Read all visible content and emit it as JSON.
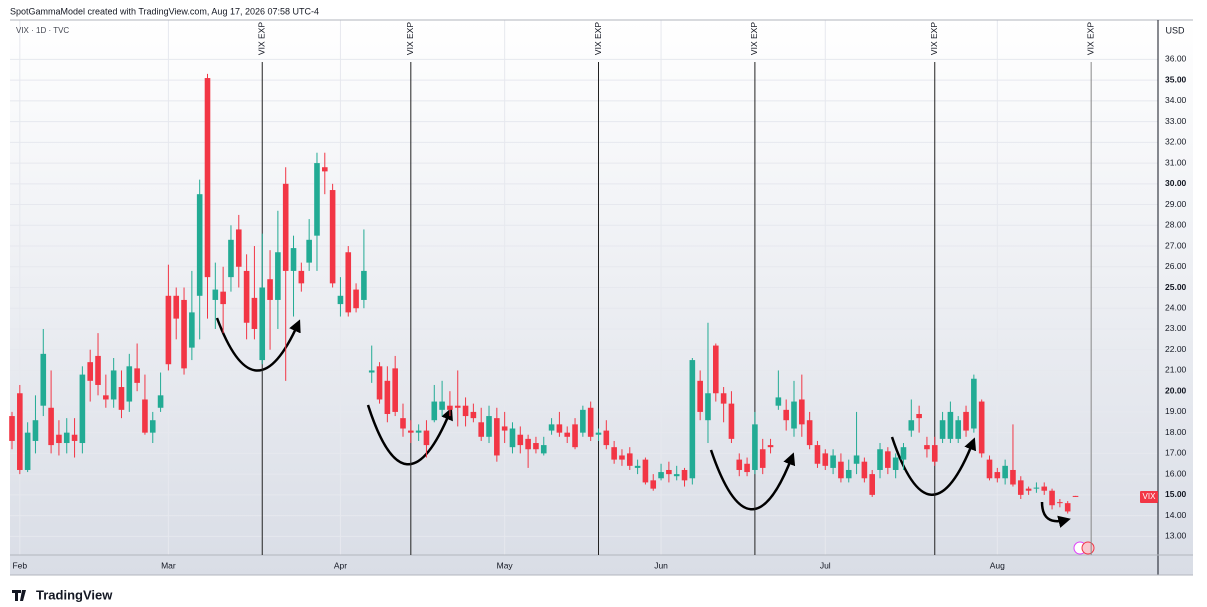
{
  "chart_data": {
    "type": "candlestick",
    "header": "SpotGammaModel created with TradingView.com, Aug 17, 2026 07:58 UTC-4",
    "symbol": "VIX · 1D · TVC",
    "currency": "USD",
    "price_label": "VIX",
    "brand": "TradingView",
    "up_color": "#22ab94",
    "down_color": "#f23645",
    "grid": true,
    "categories": [
      null,
      "Feb",
      null,
      null,
      null,
      null,
      null,
      null,
      null,
      null,
      null,
      null,
      null,
      null,
      null,
      null,
      null,
      null,
      null,
      null,
      "Mar",
      null,
      null,
      null,
      null,
      null,
      null,
      null,
      null,
      null,
      null,
      null,
      null,
      null,
      null,
      null,
      null,
      null,
      null,
      null,
      null,
      null,
      "Apr",
      null,
      null,
      null,
      null,
      null,
      null,
      null,
      null,
      null,
      null,
      null,
      null,
      null,
      null,
      null,
      null,
      null,
      null,
      null,
      null,
      "May",
      null,
      null,
      null,
      null,
      null,
      null,
      null,
      null,
      null,
      null,
      null,
      null,
      null,
      null,
      null,
      null,
      null,
      null,
      null,
      "Jun",
      null,
      null,
      null,
      null,
      null,
      null,
      null,
      null,
      null,
      null,
      null,
      null,
      null,
      null,
      null,
      null,
      null,
      null,
      null,
      null,
      "Jul",
      null,
      null,
      null,
      null,
      null,
      null,
      null,
      null,
      null,
      null,
      null,
      null,
      null,
      null,
      null,
      null,
      null,
      null,
      null,
      null,
      null,
      "Aug",
      null,
      null,
      null,
      null,
      null,
      null,
      null,
      null,
      null,
      null
    ],
    "open": [
      18.8,
      19.9,
      16.2,
      17.6,
      19.3,
      19.2,
      17.9,
      17.5,
      17.9,
      17.5,
      21.4,
      21.7,
      19.8,
      19.6,
      20.2,
      19.5,
      21.1,
      19.6,
      18.0,
      19.2,
      24.6,
      24.6,
      24.4,
      22.1,
      24.6,
      35.1,
      24.4,
      24.8,
      25.5,
      27.8,
      25.8,
      24.5,
      21.5,
      25.4,
      24.4,
      30.0,
      25.8,
      25.8,
      26.2,
      27.5,
      30.8,
      29.7,
      24.2,
      26.7,
      24.9,
      24.4,
      20.9,
      21.2,
      20.5,
      21.1,
      18.7,
      18.1,
      18.0,
      18.1,
      18.6,
      19.1,
      19.3,
      19.3,
      19.3,
      19.0,
      18.5,
      17.8,
      18.7,
      18.3,
      17.3,
      17.9,
      17.7,
      17.5,
      17.0,
      18.1,
      18.4,
      18.0,
      18.4,
      18.0,
      19.2,
      17.9,
      18.1,
      17.3,
      16.9,
      17.0,
      16.3,
      16.7,
      15.7,
      15.8,
      16.2,
      15.9,
      16.2,
      15.8,
      20.5,
      18.6,
      22.2,
      19.9,
      19.4,
      16.7,
      16.5,
      16.2,
      17.2,
      17.4,
      19.3,
      19.1,
      18.2,
      19.6,
      18.6,
      17.4,
      17.0,
      16.3,
      16.6,
      15.8,
      16.5,
      16.6,
      16.0,
      16.2,
      17.1,
      16.2,
      16.7,
      18.1,
      18.9,
      17.4,
      17.4,
      17.7,
      17.7,
      17.7,
      19.0,
      18.2,
      19.5,
      16.7,
      16.1,
      15.8,
      16.2,
      15.7,
      15.3,
      15.3,
      15.4,
      15.2,
      14.65,
      14.6,
      14.95
    ],
    "high": [
      19.0,
      20.3,
      18.5,
      19.8,
      23.0,
      21.0,
      18.6,
      18.7,
      18.7,
      21.2,
      22.0,
      22.8,
      20.8,
      21.6,
      21.0,
      21.8,
      22.3,
      20.8,
      19.0,
      20.9,
      26.1,
      25.0,
      25.0,
      25.8,
      30.2,
      35.3,
      26.2,
      26.0,
      28.0,
      28.5,
      26.6,
      27.0,
      27.6,
      26.8,
      28.7,
      30.8,
      27.5,
      26.2,
      28.3,
      31.5,
      31.5,
      30.0,
      25.5,
      27.0,
      25.2,
      27.8,
      22.2,
      21.4,
      21.2,
      21.7,
      19.4,
      18.6,
      18.4,
      18.6,
      20.3,
      20.5,
      20.0,
      21.0,
      19.7,
      19.4,
      19.2,
      19.3,
      19.2,
      19.0,
      18.5,
      18.3,
      17.9,
      17.8,
      17.8,
      18.7,
      19.0,
      18.3,
      18.7,
      19.3,
      19.5,
      18.2,
      18.6,
      17.6,
      17.2,
      17.3,
      16.7,
      16.8,
      16.0,
      16.5,
      16.6,
      16.4,
      16.3,
      21.6,
      21.0,
      23.3,
      22.3,
      20.2,
      20.0,
      17.0,
      16.8,
      19.0,
      17.7,
      17.7,
      21.0,
      19.6,
      20.5,
      20.8,
      19.0,
      17.6,
      17.2,
      17.2,
      17.0,
      16.7,
      19.0,
      16.8,
      16.2,
      17.5,
      17.3,
      17.0,
      17.5,
      19.6,
      19.3,
      17.8,
      17.8,
      19.0,
      19.5,
      18.8,
      19.3,
      20.8,
      19.6,
      16.9,
      16.3,
      16.7,
      18.4,
      15.9,
      15.4,
      15.6,
      15.6,
      15.3,
      14.8,
      14.7,
      14.95
    ],
    "low": [
      17.2,
      16.0,
      16.1,
      17.0,
      18.8,
      17.0,
      16.9,
      17.0,
      16.8,
      17.0,
      19.5,
      19.8,
      19.2,
      19.2,
      18.7,
      19.0,
      20.0,
      17.9,
      17.5,
      19.0,
      21.0,
      22.5,
      20.8,
      21.5,
      22.5,
      23.5,
      23.0,
      22.8,
      24.8,
      25.0,
      22.5,
      22.5,
      21.3,
      22.0,
      23.0,
      20.5,
      23.6,
      24.8,
      25.8,
      25.8,
      29.5,
      25.0,
      23.6,
      23.6,
      23.8,
      24.0,
      20.4,
      19.4,
      18.5,
      18.8,
      17.8,
      17.5,
      17.6,
      16.8,
      18.5,
      18.8,
      18.8,
      18.3,
      18.3,
      18.5,
      17.6,
      17.5,
      16.6,
      17.5,
      17.0,
      17.0,
      16.3,
      17.0,
      16.9,
      17.9,
      17.8,
      17.5,
      17.2,
      17.8,
      17.6,
      17.6,
      17.2,
      16.5,
      16.4,
      16.2,
      16.0,
      15.5,
      15.2,
      15.7,
      15.6,
      15.7,
      15.4,
      15.5,
      18.6,
      17.5,
      19.5,
      18.5,
      17.5,
      15.9,
      15.9,
      16.0,
      16.0,
      17.0,
      19.1,
      18.1,
      17.8,
      17.8,
      17.2,
      16.3,
      16.2,
      16.0,
      15.6,
      15.6,
      16.0,
      15.6,
      14.9,
      15.8,
      16.0,
      15.8,
      16.2,
      17.8,
      18.0,
      16.8,
      16.4,
      17.5,
      17.5,
      17.5,
      17.8,
      18.0,
      16.8,
      15.7,
      15.6,
      15.5,
      15.4,
      14.8,
      15.0,
      15.1,
      15.0,
      14.3,
      14.4,
      14.1,
      14.9
    ],
    "close": [
      17.6,
      16.2,
      18.0,
      18.6,
      21.8,
      17.4,
      17.5,
      18.0,
      17.6,
      20.8,
      20.5,
      20.3,
      19.6,
      21.0,
      19.1,
      21.2,
      20.4,
      18.0,
      18.6,
      19.8,
      21.3,
      23.5,
      21.1,
      23.8,
      29.5,
      25.5,
      24.9,
      24.2,
      27.3,
      26.0,
      23.3,
      23.0,
      25.0,
      24.4,
      26.7,
      25.8,
      26.9,
      25.2,
      27.3,
      31.0,
      30.6,
      25.2,
      24.6,
      23.8,
      24.0,
      25.8,
      21.0,
      19.6,
      18.9,
      19.0,
      18.2,
      18.0,
      18.1,
      17.4,
      19.5,
      19.5,
      19.1,
      19.2,
      18.8,
      18.7,
      17.8,
      18.8,
      16.9,
      18.1,
      18.2,
      17.4,
      17.2,
      17.2,
      17.4,
      18.4,
      18.0,
      17.8,
      17.3,
      19.1,
      17.8,
      18.0,
      17.4,
      16.7,
      16.7,
      16.4,
      16.4,
      15.6,
      15.3,
      16.1,
      16.0,
      16.0,
      15.7,
      21.5,
      19.0,
      19.9,
      19.9,
      19.4,
      17.7,
      16.2,
      16.1,
      18.4,
      16.3,
      17.3,
      19.7,
      18.6,
      19.5,
      18.4,
      17.4,
      16.5,
      16.4,
      16.9,
      15.8,
      16.2,
      16.9,
      15.8,
      15.0,
      17.2,
      16.3,
      16.8,
      17.3,
      18.6,
      18.7,
      17.2,
      16.6,
      18.6,
      19.0,
      18.6,
      18.1,
      20.6,
      17.0,
      15.8,
      15.8,
      16.4,
      15.5,
      15.0,
      15.2,
      15.35,
      15.2,
      14.5,
      14.6,
      14.2,
      14.9
    ],
    "ylim": [
      12.1,
      37.9
    ],
    "yticks": [
      {
        "value": 13,
        "label": "13.00"
      },
      {
        "value": 14,
        "label": "14.00"
      },
      {
        "value": 15,
        "label": "15.00"
      },
      {
        "value": 16,
        "label": "16.00"
      },
      {
        "value": 17,
        "label": "17.00"
      },
      {
        "value": 18,
        "label": "18.00"
      },
      {
        "value": 19,
        "label": "19.00"
      },
      {
        "value": 20,
        "label": "20.00"
      },
      {
        "value": 21,
        "label": "21.00"
      },
      {
        "value": 22,
        "label": "22.00"
      },
      {
        "value": 23,
        "label": "23.00"
      },
      {
        "value": 24,
        "label": "24.00"
      },
      {
        "value": 25,
        "label": "25.00"
      },
      {
        "value": 26,
        "label": "26.00"
      },
      {
        "value": 27,
        "label": "27.00"
      },
      {
        "value": 28,
        "label": "28.00"
      },
      {
        "value": 29,
        "label": "29.00"
      },
      {
        "value": 30,
        "label": "30.00"
      },
      {
        "value": 31,
        "label": "31.00"
      },
      {
        "value": 32,
        "label": "32.00"
      },
      {
        "value": 33,
        "label": "33.00"
      },
      {
        "value": 34,
        "label": "34.00"
      },
      {
        "value": 35,
        "label": "35.00"
      },
      {
        "value": 36,
        "label": "36.00"
      }
    ],
    "annotations": [
      {
        "text": "VIX EXP",
        "index": 32
      },
      {
        "text": "VIX EXP",
        "index": 51
      },
      {
        "text": "VIX EXP",
        "index": 75
      },
      {
        "text": "VIX EXP",
        "index": 95
      },
      {
        "text": "VIX EXP",
        "index": 118
      },
      {
        "text": "VIX EXP",
        "index": 138
      }
    ]
  }
}
